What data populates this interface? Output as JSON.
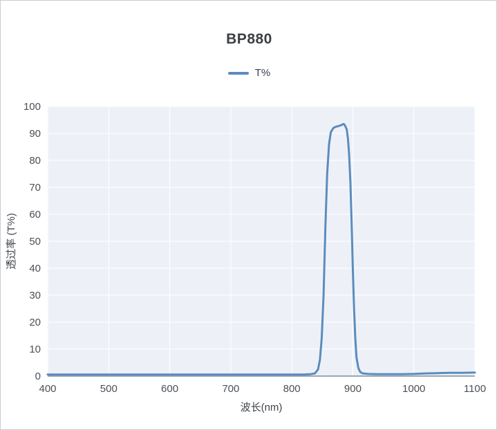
{
  "chart": {
    "title": "BP880",
    "legend": "T%"
  },
  "colors": {
    "line": "#5b8cbe",
    "plot_bg": "#edf1f7",
    "grid": "#ffffff",
    "axis": "#7b8ca0"
  },
  "chart_data": {
    "type": "line",
    "title": "BP880",
    "xlabel": "波长(nm)",
    "ylabel": "透过率 (T%)",
    "xlim": [
      400,
      1100
    ],
    "ylim": [
      0,
      100
    ],
    "x_ticks": [
      400,
      500,
      600,
      700,
      800,
      900,
      1000,
      1100
    ],
    "y_ticks": [
      0,
      10,
      20,
      30,
      40,
      50,
      60,
      70,
      80,
      90,
      100
    ],
    "grid": true,
    "legend_position": "top",
    "series": [
      {
        "name": "T%",
        "color": "#5b8cbe",
        "points": [
          [
            400,
            0.6
          ],
          [
            450,
            0.6
          ],
          [
            500,
            0.6
          ],
          [
            550,
            0.6
          ],
          [
            600,
            0.6
          ],
          [
            650,
            0.6
          ],
          [
            700,
            0.6
          ],
          [
            750,
            0.6
          ],
          [
            800,
            0.6
          ],
          [
            820,
            0.6
          ],
          [
            830,
            0.7
          ],
          [
            838,
            1
          ],
          [
            843,
            2.5
          ],
          [
            846,
            6
          ],
          [
            849,
            14
          ],
          [
            852,
            30
          ],
          [
            855,
            55
          ],
          [
            858,
            75
          ],
          [
            861,
            86
          ],
          [
            864,
            90.5
          ],
          [
            868,
            92
          ],
          [
            872,
            92.5
          ],
          [
            876,
            92.7
          ],
          [
            880,
            93
          ],
          [
            883,
            93.3
          ],
          [
            885,
            93.5
          ],
          [
            887,
            93
          ],
          [
            890,
            91.5
          ],
          [
            892,
            88
          ],
          [
            894,
            82
          ],
          [
            896,
            72
          ],
          [
            898,
            57
          ],
          [
            900,
            40
          ],
          [
            902,
            25
          ],
          [
            904,
            14
          ],
          [
            906,
            7
          ],
          [
            909,
            3
          ],
          [
            912,
            1.6
          ],
          [
            916,
            1
          ],
          [
            925,
            0.8
          ],
          [
            940,
            0.7
          ],
          [
            960,
            0.7
          ],
          [
            980,
            0.7
          ],
          [
            1000,
            0.8
          ],
          [
            1020,
            1
          ],
          [
            1040,
            1.1
          ],
          [
            1060,
            1.2
          ],
          [
            1080,
            1.2
          ],
          [
            1100,
            1.3
          ]
        ]
      }
    ]
  }
}
